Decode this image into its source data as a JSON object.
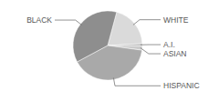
{
  "chart_data": {
    "type": "pie",
    "categories": [
      "WHITE",
      "A.I.",
      "ASIAN",
      "HISPANIC",
      "BLACK"
    ],
    "values": [
      20,
      1,
      2,
      40,
      37
    ],
    "colors": [
      "#dadada",
      "#b5b5b5",
      "#cbcbcb",
      "#a9a9a9",
      "#8e8e8e"
    ]
  }
}
